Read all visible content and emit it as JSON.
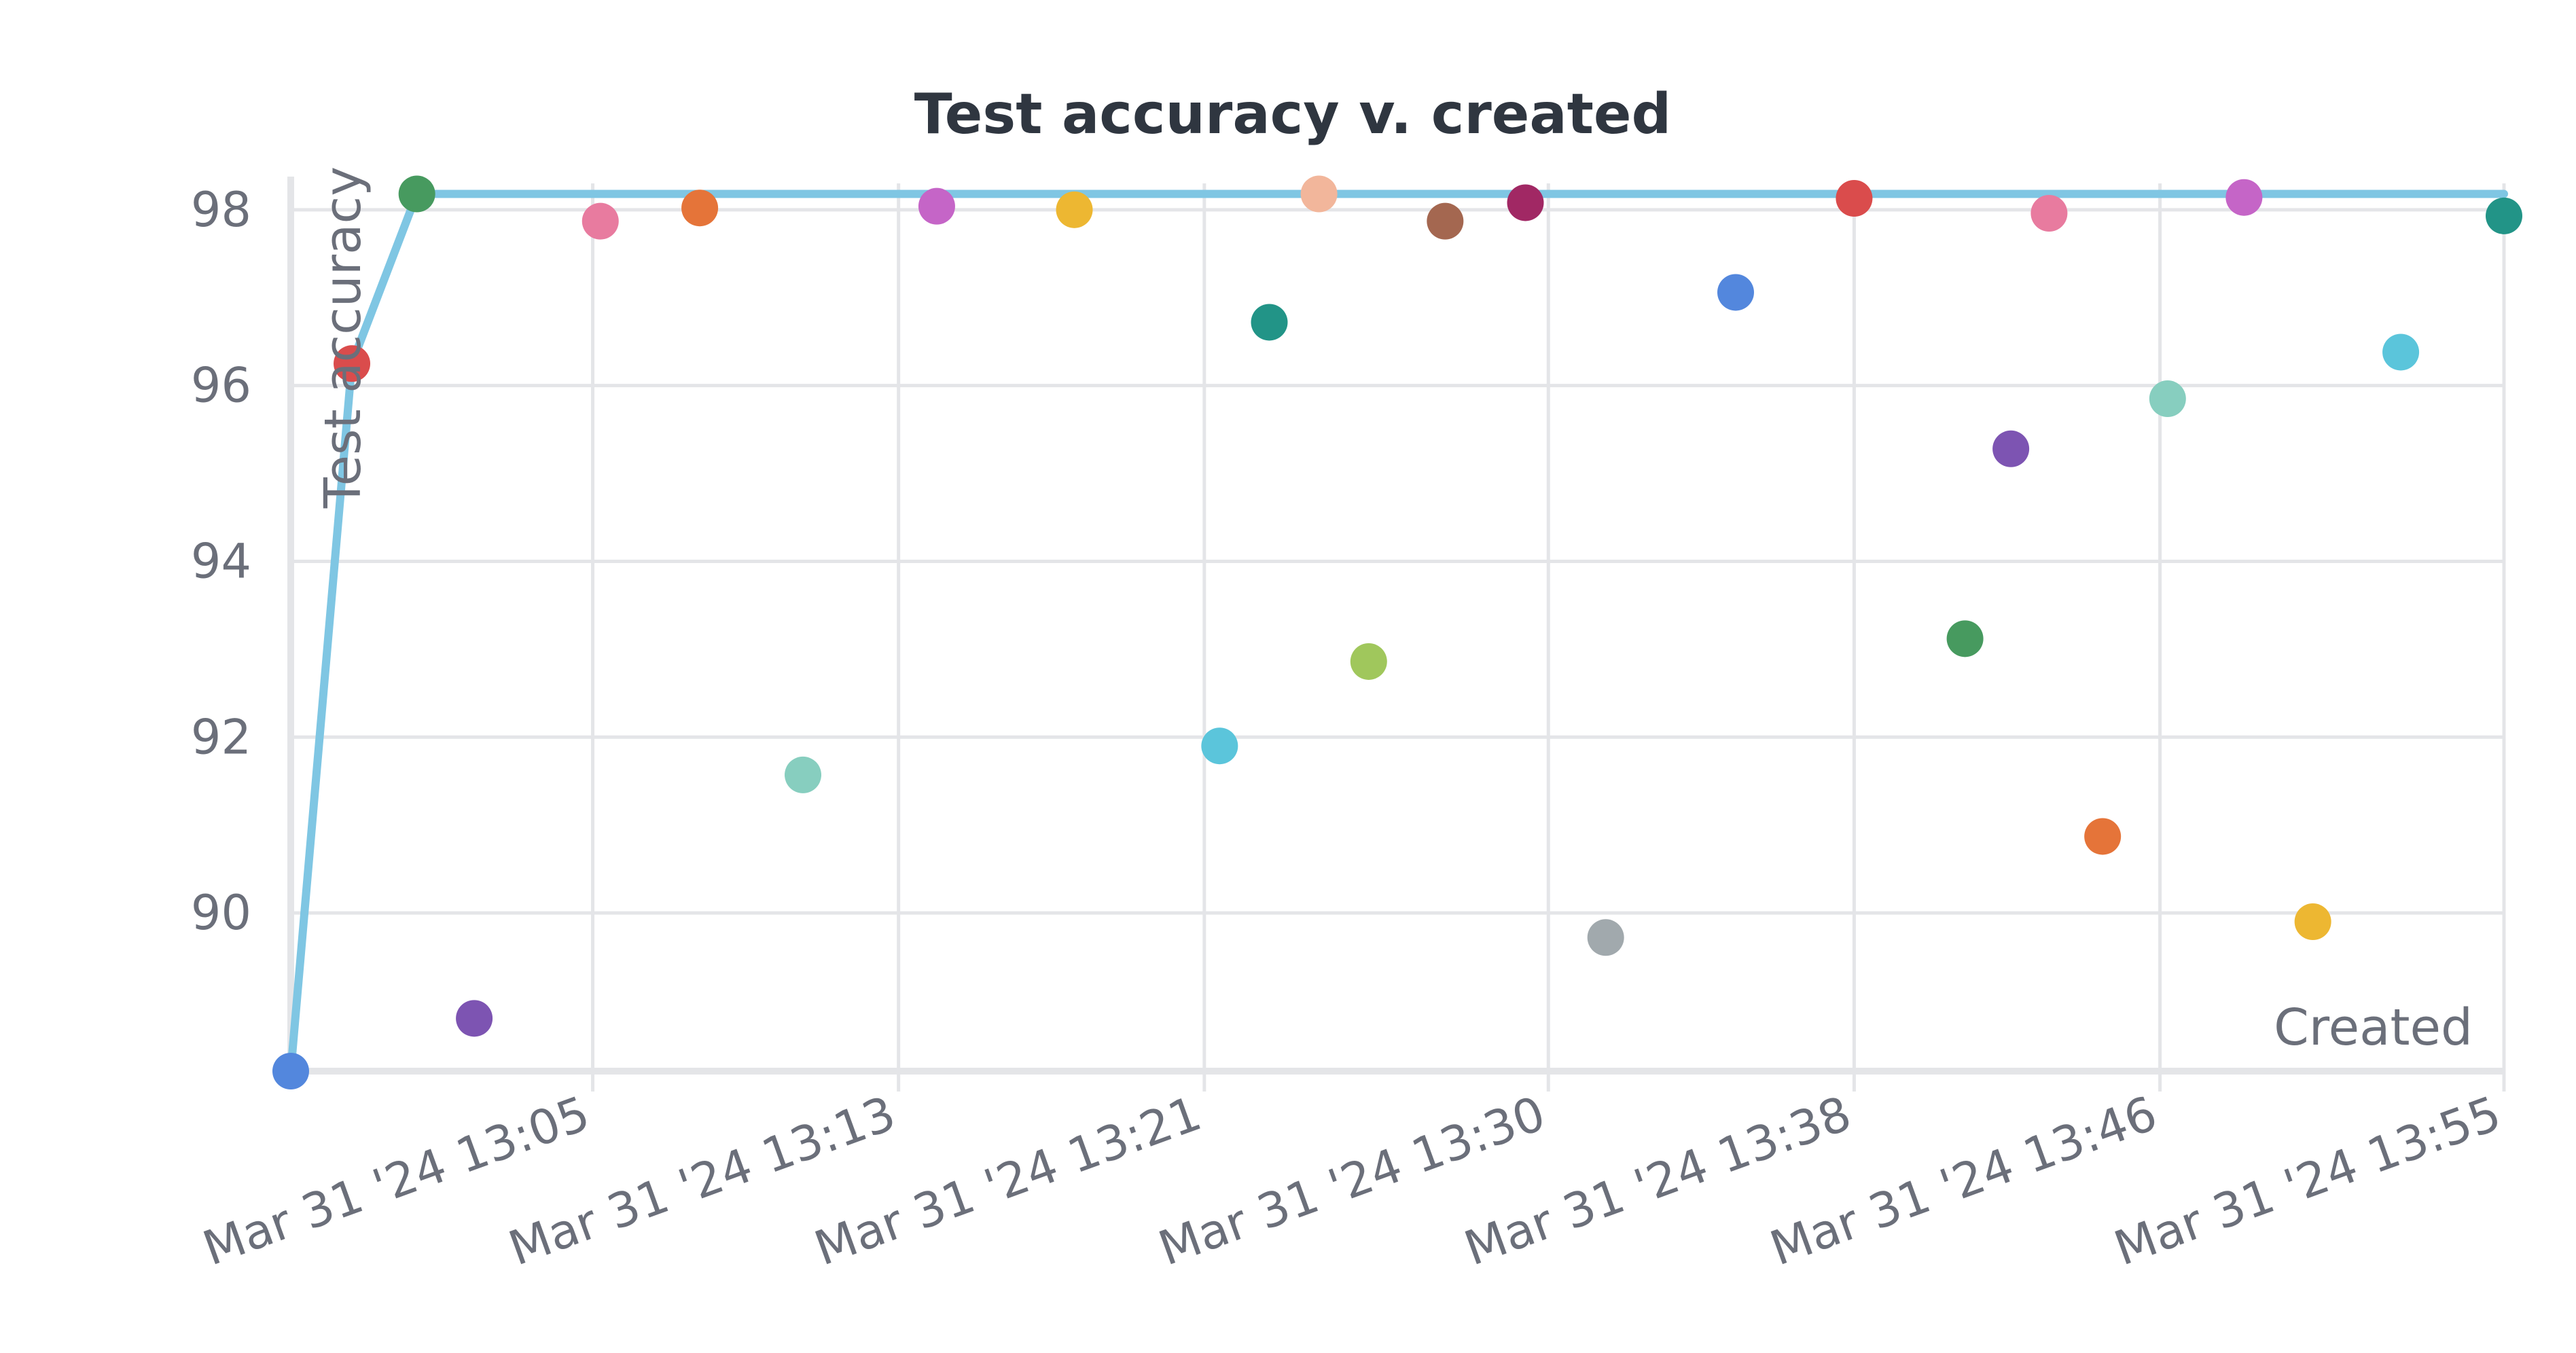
{
  "chart_data": {
    "type": "scatter",
    "title": "Test accuracy v. created",
    "xlabel": "Created",
    "ylabel": "Test accuracy",
    "ylim": [
      88.2,
      98.3
    ],
    "xlim": [
      "2024-03-31 12:57:06",
      "2024-03-31 13:55:00"
    ],
    "y_ticks": [
      90,
      92,
      94,
      96,
      98
    ],
    "x_ticks": [
      {
        "at": "2024-03-31 13:05:00",
        "label": "Mar 31 '24 13:05"
      },
      {
        "at": "2024-03-31 13:13:00",
        "label": "Mar 31 '24 13:13"
      },
      {
        "at": "2024-03-31 13:21:00",
        "label": "Mar 31 '24 13:21"
      },
      {
        "at": "2024-03-31 13:30:00",
        "label": "Mar 31 '24 13:30"
      },
      {
        "at": "2024-03-31 13:38:00",
        "label": "Mar 31 '24 13:38"
      },
      {
        "at": "2024-03-31 13:46:00",
        "label": "Mar 31 '24 13:46"
      },
      {
        "at": "2024-03-31 13:55:00",
        "label": "Mar 31 '24 13:55"
      }
    ],
    "grid": true,
    "line_color": "#7fc6e3",
    "best_so_far_line": [
      {
        "x": "2024-03-31 12:57:06",
        "y": 88.2
      },
      {
        "x": "2024-03-31 12:58:42",
        "y": 96.25
      },
      {
        "x": "2024-03-31 13:00:24",
        "y": 98.18
      },
      {
        "x": "2024-03-31 13:23:30",
        "y": 98.18
      },
      {
        "x": "2024-03-31 13:55:00",
        "y": 98.18
      }
    ],
    "points": [
      {
        "x": "2024-03-31 12:57:06",
        "y": 88.2,
        "color": "#5387dd"
      },
      {
        "x": "2024-03-31 12:58:42",
        "y": 96.25,
        "color": "#da4c4c"
      },
      {
        "x": "2024-03-31 13:00:24",
        "y": 98.18,
        "color": "#479a5f"
      },
      {
        "x": "2024-03-31 13:01:54",
        "y": 88.8,
        "color": "#7d54b2"
      },
      {
        "x": "2024-03-31 13:05:12",
        "y": 97.87,
        "color": "#e87b9f"
      },
      {
        "x": "2024-03-31 13:07:48",
        "y": 98.02,
        "color": "#e57439"
      },
      {
        "x": "2024-03-31 13:10:30",
        "y": 91.57,
        "color": "#87cebf"
      },
      {
        "x": "2024-03-31 13:14:00",
        "y": 98.04,
        "color": "#c565c7"
      },
      {
        "x": "2024-03-31 13:17:36",
        "y": 98.0,
        "color": "#edb732"
      },
      {
        "x": "2024-03-31 13:21:24",
        "y": 91.9,
        "color": "#5bc5db"
      },
      {
        "x": "2024-03-31 13:22:42",
        "y": 96.72,
        "color": "#229487"
      },
      {
        "x": "2024-03-31 13:24:00",
        "y": 98.18,
        "color": "#f2b69b"
      },
      {
        "x": "2024-03-31 13:25:18",
        "y": 92.86,
        "color": "#a0c75c"
      },
      {
        "x": "2024-03-31 13:27:18",
        "y": 97.87,
        "color": "#a46750"
      },
      {
        "x": "2024-03-31 13:29:24",
        "y": 98.08,
        "color": "#a12864"
      },
      {
        "x": "2024-03-31 13:31:30",
        "y": 89.72,
        "color": "#a1a9ad"
      },
      {
        "x": "2024-03-31 13:34:54",
        "y": 97.06,
        "color": "#5387dd"
      },
      {
        "x": "2024-03-31 13:38:00",
        "y": 98.13,
        "color": "#da4c4c"
      },
      {
        "x": "2024-03-31 13:40:54",
        "y": 93.12,
        "color": "#479a5f"
      },
      {
        "x": "2024-03-31 13:42:06",
        "y": 95.28,
        "color": "#7d54b2"
      },
      {
        "x": "2024-03-31 13:43:06",
        "y": 97.96,
        "color": "#e87b9f"
      },
      {
        "x": "2024-03-31 13:44:30",
        "y": 90.87,
        "color": "#e57439"
      },
      {
        "x": "2024-03-31 13:46:12",
        "y": 95.85,
        "color": "#87cebf"
      },
      {
        "x": "2024-03-31 13:48:12",
        "y": 98.14,
        "color": "#c565c7"
      },
      {
        "x": "2024-03-31 13:50:00",
        "y": 89.9,
        "color": "#edb732"
      },
      {
        "x": "2024-03-31 13:52:18",
        "y": 96.38,
        "color": "#5bc5db"
      },
      {
        "x": "2024-03-31 13:55:00",
        "y": 97.93,
        "color": "#229487"
      }
    ]
  }
}
